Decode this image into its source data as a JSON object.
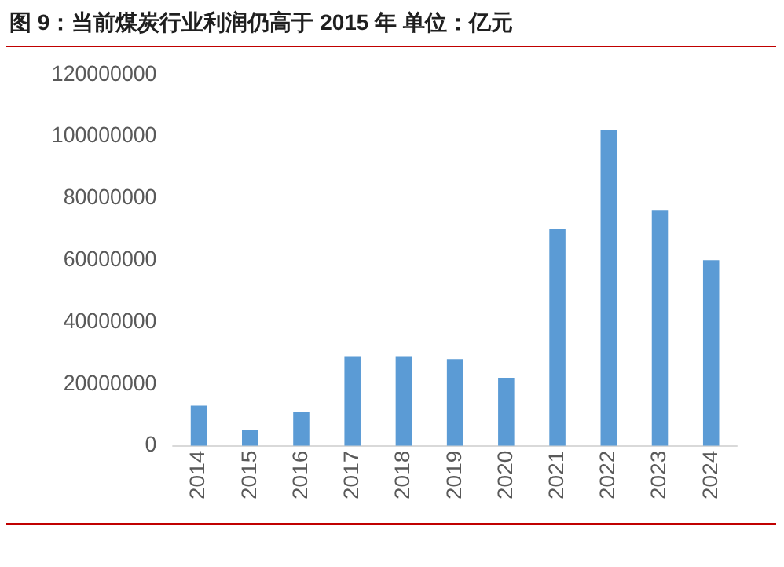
{
  "chart_data": {
    "type": "bar",
    "title": "图 9：当前煤炭行业利润仍高于 2015 年 单位：亿元",
    "categories": [
      "2014",
      "2015",
      "2016",
      "2017",
      "2018",
      "2019",
      "2020",
      "2021",
      "2022",
      "2023",
      "2024"
    ],
    "values": [
      13000000,
      5000000,
      11000000,
      29000000,
      29000000,
      28000000,
      22000000,
      70000000,
      102000000,
      76000000,
      60000000
    ],
    "color": "#5b9bd5",
    "ylim": [
      0,
      120000000
    ],
    "yticks": [
      0,
      20000000,
      40000000,
      60000000,
      80000000,
      100000000,
      120000000
    ],
    "grid": false,
    "legend": false
  }
}
